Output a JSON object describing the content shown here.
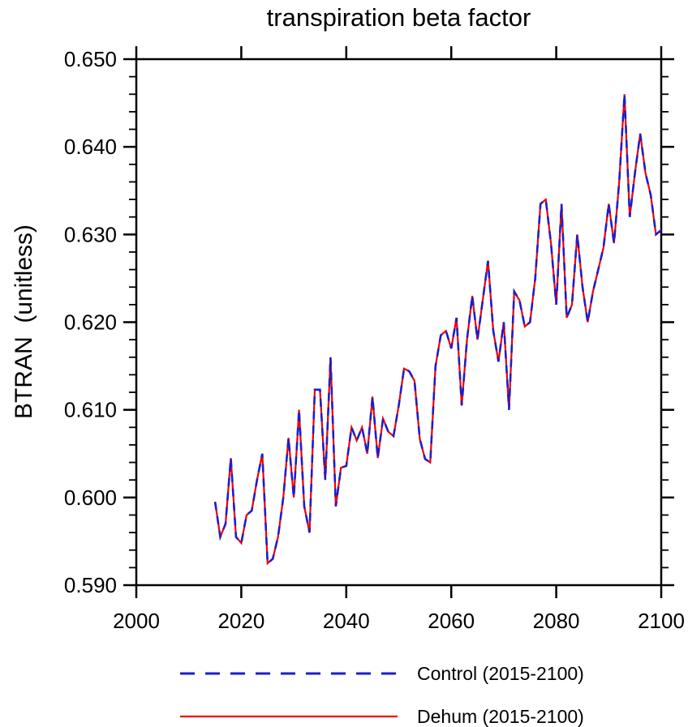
{
  "title": "transpiration beta factor",
  "ylabel": "BTRAN  (unitless)",
  "legend": [
    {
      "label": "Control (2015-2100)",
      "color": "#1e1ec8",
      "style": "dashed"
    },
    {
      "label": "Dehum (2015-2100)",
      "color": "#ee0000",
      "style": "solid"
    }
  ],
  "chart_data": {
    "type": "line",
    "title": "transpiration beta factor",
    "xlabel": "",
    "ylabel": "BTRAN  (unitless)",
    "xlim": [
      2000,
      2100
    ],
    "ylim": [
      0.59,
      0.65
    ],
    "x_major_ticks": [
      2000,
      2020,
      2040,
      2060,
      2080,
      2100
    ],
    "y_major_ticks": [
      0.59,
      0.6,
      0.61,
      0.62,
      0.63,
      0.64,
      0.65
    ],
    "y_minor_step": 0.002,
    "grid": false,
    "legend_position": "bottom",
    "x_start": 2015,
    "x_step": 1,
    "x_end": 2100,
    "series": [
      {
        "name": "Control (2015-2100)",
        "color": "#1e1ec8",
        "dash": [
          10,
          8
        ],
        "width": 2.6,
        "values": [
          0.5995,
          0.5955,
          0.597,
          0.6045,
          0.5955,
          0.5948,
          0.598,
          0.5985,
          0.602,
          0.605,
          0.5925,
          0.593,
          0.5955,
          0.6,
          0.6068,
          0.6,
          0.61,
          0.599,
          0.596,
          0.6123,
          0.6123,
          0.602,
          0.616,
          0.599,
          0.6034,
          0.6036,
          0.608,
          0.6065,
          0.608,
          0.605,
          0.6115,
          0.6045,
          0.609,
          0.6075,
          0.607,
          0.6105,
          0.6147,
          0.6144,
          0.6133,
          0.6067,
          0.6044,
          0.604,
          0.615,
          0.6185,
          0.619,
          0.617,
          0.6205,
          0.6105,
          0.618,
          0.623,
          0.618,
          0.6225,
          0.627,
          0.619,
          0.6155,
          0.62,
          0.61,
          0.6235,
          0.6225,
          0.6195,
          0.62,
          0.625,
          0.6335,
          0.634,
          0.629,
          0.622,
          0.6335,
          0.6205,
          0.622,
          0.63,
          0.624,
          0.62,
          0.6235,
          0.626,
          0.6285,
          0.6335,
          0.629,
          0.636,
          0.646,
          0.632,
          0.637,
          0.6415,
          0.637,
          0.6345,
          0.63,
          0.6305
        ]
      },
      {
        "name": "Dehum (2015-2100)",
        "color": "#ee0000",
        "dash": null,
        "width": 2.2,
        "values": [
          0.5995,
          0.5955,
          0.597,
          0.6045,
          0.5955,
          0.5948,
          0.598,
          0.5985,
          0.602,
          0.605,
          0.5925,
          0.593,
          0.5955,
          0.6,
          0.6068,
          0.6,
          0.61,
          0.599,
          0.596,
          0.6123,
          0.6123,
          0.602,
          0.616,
          0.599,
          0.6034,
          0.6036,
          0.608,
          0.6065,
          0.608,
          0.605,
          0.6115,
          0.6045,
          0.609,
          0.6075,
          0.607,
          0.6105,
          0.6147,
          0.6144,
          0.6133,
          0.6067,
          0.6044,
          0.604,
          0.615,
          0.6185,
          0.619,
          0.617,
          0.6205,
          0.6105,
          0.618,
          0.623,
          0.618,
          0.6225,
          0.627,
          0.619,
          0.6155,
          0.62,
          0.61,
          0.6235,
          0.6225,
          0.6195,
          0.62,
          0.625,
          0.6335,
          0.634,
          0.629,
          0.622,
          0.6335,
          0.6205,
          0.622,
          0.63,
          0.624,
          0.62,
          0.6235,
          0.626,
          0.6285,
          0.6335,
          0.629,
          0.636,
          0.646,
          0.632,
          0.637,
          0.6415,
          0.637,
          0.6345,
          0.63,
          0.6305
        ]
      }
    ]
  }
}
